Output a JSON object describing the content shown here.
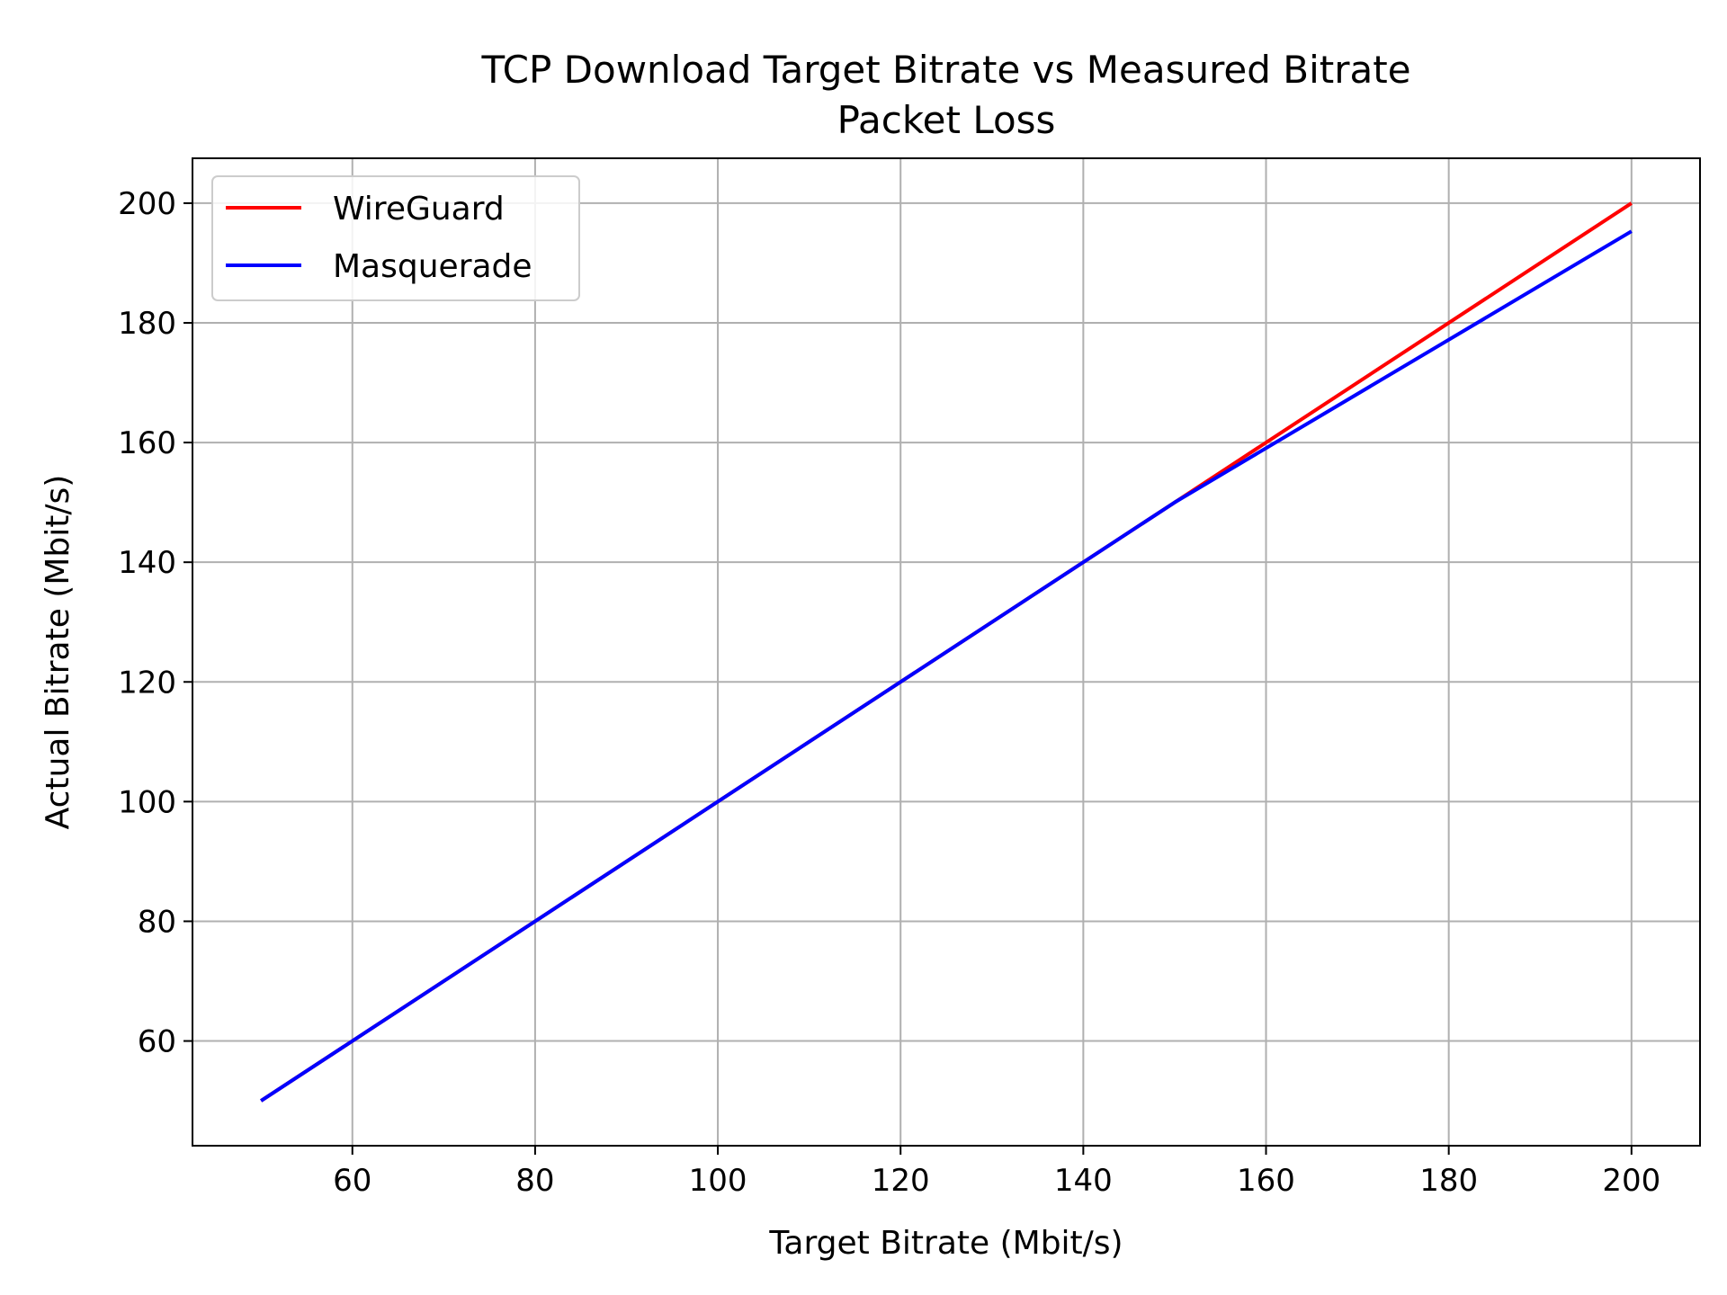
{
  "chart_data": {
    "type": "line",
    "title": "TCP Download Target Bitrate vs Measured Bitrate",
    "subtitle": "Packet Loss",
    "xlabel": "Target Bitrate (Mbit/s)",
    "ylabel": "Actual Bitrate (Mbit/s)",
    "xlim": [
      42.5,
      207.5
    ],
    "ylim": [
      42.5,
      207.5
    ],
    "xticks": [
      60,
      80,
      100,
      120,
      140,
      160,
      180,
      200
    ],
    "yticks": [
      60,
      80,
      100,
      120,
      140,
      160,
      180,
      200
    ],
    "grid": true,
    "legend_position": "top-left",
    "series": [
      {
        "name": "WireGuard",
        "color": "#ff0000",
        "x": [
          50,
          150,
          200
        ],
        "y": [
          50,
          150,
          200
        ]
      },
      {
        "name": "Masquerade",
        "color": "#0000ff",
        "x": [
          50,
          150,
          200
        ],
        "y": [
          50,
          150,
          195.3
        ]
      }
    ]
  }
}
